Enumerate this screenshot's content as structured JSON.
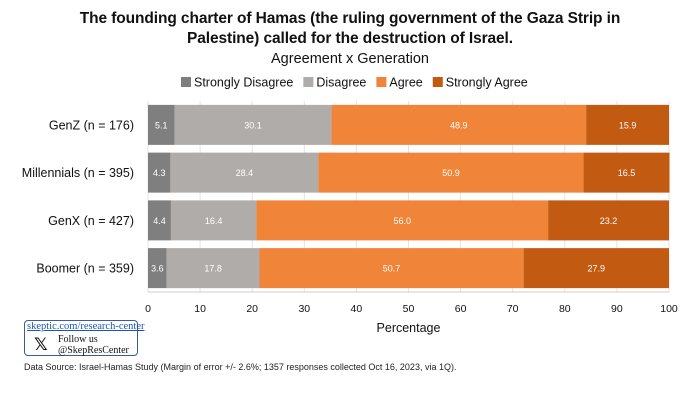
{
  "chart_data": {
    "type": "bar",
    "orientation": "horizontal",
    "stacked": true,
    "title_lines": [
      "The founding charter of Hamas (the ruling government of the Gaza Strip in",
      "Palestine) called for the destruction of Israel."
    ],
    "subtitle": "Agreement x Generation",
    "categories": [
      "GenZ (n = 176)",
      "Millennials (n = 395)",
      "GenX (n = 427)",
      "Boomer (n = 359)"
    ],
    "series": [
      {
        "name": "Strongly Disagree",
        "color": "#7f7f7f",
        "values": [
          5.1,
          4.3,
          4.4,
          3.6
        ]
      },
      {
        "name": "Disagree",
        "color": "#b0aca9",
        "values": [
          30.1,
          28.4,
          16.4,
          17.8
        ]
      },
      {
        "name": "Agree",
        "color": "#f08439",
        "values": [
          48.9,
          50.9,
          56.0,
          50.7
        ]
      },
      {
        "name": "Strongly Agree",
        "color": "#c35a11",
        "values": [
          15.9,
          16.5,
          23.2,
          27.9
        ]
      }
    ],
    "xlabel": "Percentage",
    "ylabel": "",
    "xlim": [
      0,
      100
    ],
    "xticks": [
      "0",
      "10",
      "20",
      "30",
      "40",
      "50",
      "60",
      "70",
      "80",
      "90",
      "100"
    ],
    "grid": true,
    "legend": "top"
  },
  "branding": {
    "link": "skeptic.com/research-center",
    "x_glyph": "𝕏",
    "follow": "Follow us",
    "handle": "@SkepResCenter"
  },
  "source": "Data Source: Israel-Hamas Study (Margin of error +/- 2.6%; 1357 responses collected Oct 16, 2023, via 1Q)."
}
